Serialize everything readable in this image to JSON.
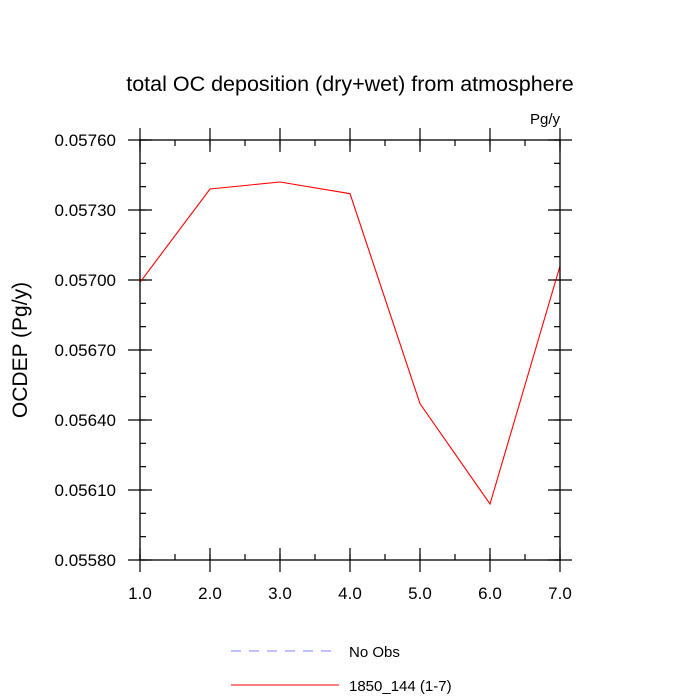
{
  "chart_data": {
    "type": "line",
    "title": "total OC deposition (dry+wet) from atmosphere",
    "units_label": "Pg/y",
    "ylabel": "OCDEP  (Pg/y)",
    "xlabel": "",
    "xlim": [
      1.0,
      7.0
    ],
    "ylim": [
      0.0558,
      0.0576
    ],
    "xticks": [
      1.0,
      2.0,
      3.0,
      4.0,
      5.0,
      6.0,
      7.0
    ],
    "xtick_labels": [
      "1.0",
      "2.0",
      "3.0",
      "4.0",
      "5.0",
      "6.0",
      "7.0"
    ],
    "yticks": [
      0.0558,
      0.0561,
      0.0564,
      0.0567,
      0.057,
      0.0573,
      0.0576
    ],
    "ytick_labels": [
      "0.05580",
      "0.05610",
      "0.05640",
      "0.05670",
      "0.05700",
      "0.05730",
      "0.05760"
    ],
    "y_minor_step": 0.0001,
    "x_minor_step": 0.5,
    "grid": false,
    "legend_position": "bottom-center",
    "series": [
      {
        "name": "1850_144 (1-7)",
        "color": "#ff0000",
        "dash": "solid",
        "x": [
          1,
          2,
          3,
          4,
          5,
          6,
          7
        ],
        "values": [
          0.05699,
          0.05739,
          0.05742,
          0.05737,
          0.05647,
          0.05604,
          0.05706
        ]
      }
    ],
    "legend": [
      {
        "name": "No Obs",
        "color": "#8080ff",
        "dash": "dashed"
      },
      {
        "name": "1850_144 (1-7)",
        "color": "#ff0000",
        "dash": "solid"
      }
    ]
  }
}
